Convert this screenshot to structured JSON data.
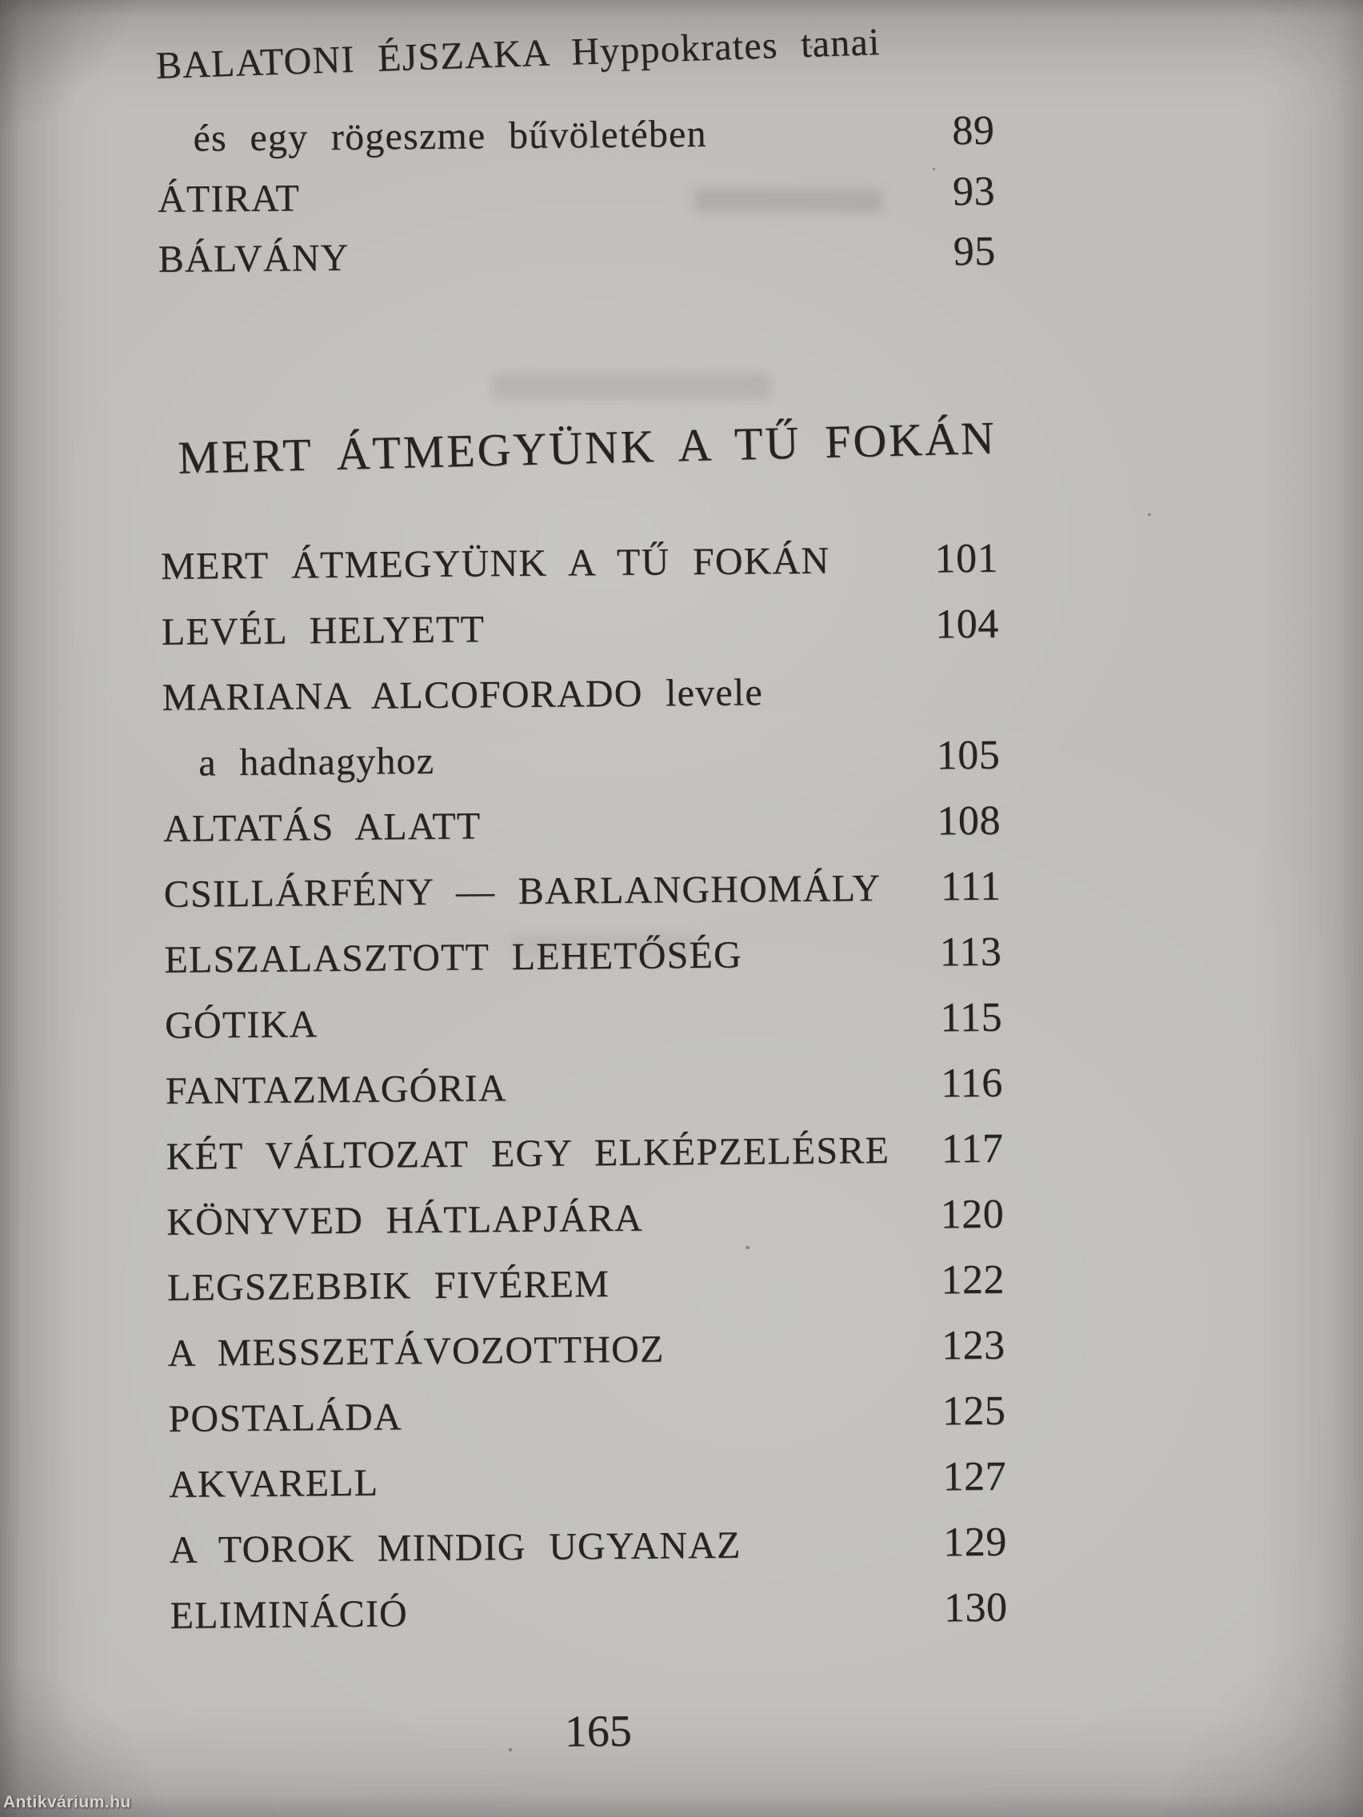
{
  "watermark": "Antikvárium.hu",
  "folio": "165",
  "front_section": {
    "entries": [
      {
        "title": "BALATONI ÉJSZAKA Hyppokrates tanai",
        "page": "",
        "indent": false
      },
      {
        "title": "és egy rögeszme bűvöletében",
        "page": "89",
        "indent": true
      },
      {
        "title": "ÁTIRAT",
        "page": "93",
        "indent": false
      },
      {
        "title": "BÁLVÁNY",
        "page": "95",
        "indent": false
      }
    ]
  },
  "section": {
    "heading": "MERT ÁTMEGYÜNK A TŰ FOKÁN",
    "entries": [
      {
        "title": "MERT ÁTMEGYÜNK A TŰ FOKÁN",
        "page": "101",
        "indent": false
      },
      {
        "title": "LEVÉL HELYETT",
        "page": "104",
        "indent": false
      },
      {
        "title": "MARIANA ALCOFORADO levele",
        "page": "",
        "indent": false
      },
      {
        "title": "a hadnagyhoz",
        "page": "105",
        "indent": true
      },
      {
        "title": "ALTATÁS ALATT",
        "page": "108",
        "indent": false
      },
      {
        "title": "CSILLÁRFÉNY — BARLANGHOMÁLY",
        "page": "111",
        "indent": false
      },
      {
        "title": "ELSZALASZTOTT LEHETŐSÉG",
        "page": "113",
        "indent": false
      },
      {
        "title": "GÓTIKA",
        "page": "115",
        "indent": false
      },
      {
        "title": "FANTAZMAGÓRIA",
        "page": "116",
        "indent": false
      },
      {
        "title": "KÉT VÁLTOZAT EGY ELKÉPZELÉSRE",
        "page": "117",
        "indent": false
      },
      {
        "title": "KÖNYVED HÁTLAPJÁRA",
        "page": "120",
        "indent": false
      },
      {
        "title": "LEGSZEBBIK FIVÉREM",
        "page": "122",
        "indent": false
      },
      {
        "title": "A MESSZETÁVOZOTTHOZ",
        "page": "123",
        "indent": false
      },
      {
        "title": "POSTALÁDA",
        "page": "125",
        "indent": false
      },
      {
        "title": "AKVARELL",
        "page": "127",
        "indent": false
      },
      {
        "title": "A TOROK MINDIG UGYANAZ",
        "page": "129",
        "indent": false
      },
      {
        "title": "ELIMINÁCIÓ",
        "page": "130",
        "indent": false
      }
    ]
  }
}
